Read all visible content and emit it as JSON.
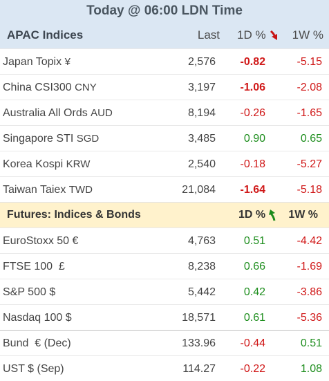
{
  "title": "Today @ 06:00 LDN Time",
  "apac": {
    "header": {
      "label": "APAC Indices",
      "last": "Last",
      "d1": "1D %",
      "w1": "1W %"
    },
    "rows": [
      {
        "name": "Japan Topix",
        "ccy": "¥",
        "last": "2,576",
        "d1": "-0.82",
        "w1": "-5.15"
      },
      {
        "name": "China CSI300",
        "ccy": "CNY",
        "last": "3,197",
        "d1": "-1.06",
        "w1": "-2.08"
      },
      {
        "name": "Australia All Ords",
        "ccy": "AUD",
        "last": "8,194",
        "d1": "-0.26",
        "w1": "-1.65"
      },
      {
        "name": "Singapore STI",
        "ccy": "SGD",
        "last": "3,485",
        "d1": "0.90",
        "w1": "0.65"
      },
      {
        "name": "Korea Kospi",
        "ccy": "KRW",
        "last": "2,540",
        "d1": "-0.18",
        "w1": "-5.27"
      },
      {
        "name": "Taiwan Taiex",
        "ccy": "TWD",
        "last": "21,084",
        "d1": "-1.64",
        "w1": "-5.18"
      }
    ]
  },
  "futures": {
    "header": {
      "label": "Futures: Indices & Bonds",
      "d1": "1D %",
      "w1": "1W %"
    },
    "rows": [
      {
        "name": "EuroStoxx 50 €",
        "last": "4,763",
        "d1": "0.51",
        "w1": "-4.42"
      },
      {
        "name": "FTSE 100  £",
        "last": "8,238",
        "d1": "0.66",
        "w1": "-1.69"
      },
      {
        "name": "S&P 500 $",
        "last": "5,442",
        "d1": "0.42",
        "w1": "-3.86"
      },
      {
        "name": "Nasdaq 100 $",
        "last": "18,571",
        "d1": "0.61",
        "w1": "-5.36"
      },
      {
        "name": "Bund  € (Dec)",
        "last": "133.96",
        "d1": "-0.44",
        "w1": "0.51"
      },
      {
        "name": "UST $ (Sep)",
        "last": "114.27",
        "d1": "-0.22",
        "w1": "1.08"
      }
    ]
  },
  "colors": {
    "negative": "#d01818",
    "positive": "#1e8e1e",
    "header_bg": "#dbe7f3",
    "futures_bg": "#fff2cc"
  },
  "icons": {
    "apac_arrow": "red-down-arrow-icon",
    "futures_arrow": "green-up-arrow-icon"
  }
}
